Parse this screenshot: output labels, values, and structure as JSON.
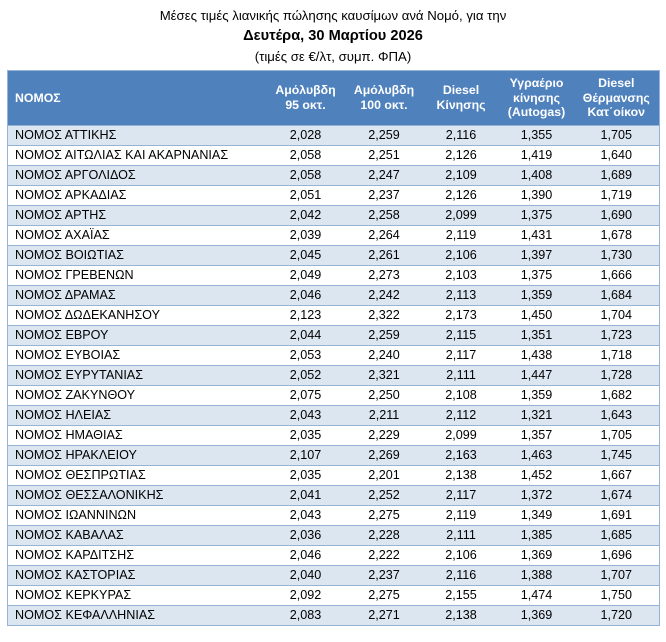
{
  "title": {
    "line1": "Μέσες τιμές λιανικής πώλησης καυσίμων ανά Νομό, για την",
    "line2": "Δευτέρα, 30 Μαρτίου 2026",
    "line3": "(τιμές σε €/λτ, συμπ. ΦΠΑ)"
  },
  "colors": {
    "header_bg": "#4F81BD",
    "header_text": "#FFFFFF",
    "row_alt_bg": "#DCE6F1",
    "border": "#95B3D7"
  },
  "table": {
    "columns": [
      "ΝΟΜΟΣ",
      "Αμόλυβδη 95 οκτ.",
      "Αμόλυβδη 100 οκτ.",
      "Diesel Κίνησης",
      "Υγραέριο κίνησης (Autogas)",
      "Diesel Θέρμανσης Κατ΄οίκον"
    ],
    "rows": [
      [
        "ΝΟΜΟΣ ΑΤΤΙΚΗΣ",
        "2,028",
        "2,259",
        "2,116",
        "1,355",
        "1,705"
      ],
      [
        "ΝΟΜΟΣ ΑΙΤΩΛΙΑΣ ΚΑΙ ΑΚΑΡΝΑΝΙΑΣ",
        "2,058",
        "2,251",
        "2,126",
        "1,419",
        "1,640"
      ],
      [
        "ΝΟΜΟΣ ΑΡΓΟΛΙΔΟΣ",
        "2,058",
        "2,247",
        "2,109",
        "1,408",
        "1,689"
      ],
      [
        "ΝΟΜΟΣ ΑΡΚΑΔΙΑΣ",
        "2,051",
        "2,237",
        "2,126",
        "1,390",
        "1,719"
      ],
      [
        "ΝΟΜΟΣ ΑΡΤΗΣ",
        "2,042",
        "2,258",
        "2,099",
        "1,375",
        "1,690"
      ],
      [
        "ΝΟΜΟΣ ΑΧΑΪΑΣ",
        "2,039",
        "2,264",
        "2,119",
        "1,431",
        "1,678"
      ],
      [
        "ΝΟΜΟΣ ΒΟΙΩΤΙΑΣ",
        "2,045",
        "2,261",
        "2,106",
        "1,397",
        "1,730"
      ],
      [
        "ΝΟΜΟΣ ΓΡΕΒΕΝΩΝ",
        "2,049",
        "2,273",
        "2,103",
        "1,375",
        "1,666"
      ],
      [
        "ΝΟΜΟΣ ΔΡΑΜΑΣ",
        "2,046",
        "2,242",
        "2,113",
        "1,359",
        "1,684"
      ],
      [
        "ΝΟΜΟΣ ΔΩΔΕΚΑΝΗΣΟΥ",
        "2,123",
        "2,322",
        "2,173",
        "1,450",
        "1,704"
      ],
      [
        "ΝΟΜΟΣ ΕΒΡΟΥ",
        "2,044",
        "2,259",
        "2,115",
        "1,351",
        "1,723"
      ],
      [
        "ΝΟΜΟΣ ΕΥΒΟΙΑΣ",
        "2,053",
        "2,240",
        "2,117",
        "1,438",
        "1,718"
      ],
      [
        "ΝΟΜΟΣ ΕΥΡΥΤΑΝΙΑΣ",
        "2,052",
        "2,321",
        "2,111",
        "1,447",
        "1,728"
      ],
      [
        "ΝΟΜΟΣ ΖΑΚΥΝΘΟΥ",
        "2,075",
        "2,250",
        "2,108",
        "1,359",
        "1,682"
      ],
      [
        "ΝΟΜΟΣ ΗΛΕΙΑΣ",
        "2,043",
        "2,211",
        "2,112",
        "1,321",
        "1,643"
      ],
      [
        "ΝΟΜΟΣ ΗΜΑΘΙΑΣ",
        "2,035",
        "2,229",
        "2,099",
        "1,357",
        "1,705"
      ],
      [
        "ΝΟΜΟΣ ΗΡΑΚΛΕΙΟΥ",
        "2,107",
        "2,269",
        "2,163",
        "1,463",
        "1,745"
      ],
      [
        "ΝΟΜΟΣ ΘΕΣΠΡΩΤΙΑΣ",
        "2,035",
        "2,201",
        "2,138",
        "1,452",
        "1,667"
      ],
      [
        "ΝΟΜΟΣ ΘΕΣΣΑΛΟΝΙΚΗΣ",
        "2,041",
        "2,252",
        "2,117",
        "1,372",
        "1,674"
      ],
      [
        "ΝΟΜΟΣ ΙΩΑΝΝΙΝΩΝ",
        "2,043",
        "2,275",
        "2,119",
        "1,349",
        "1,691"
      ],
      [
        "ΝΟΜΟΣ ΚΑΒΑΛΑΣ",
        "2,036",
        "2,228",
        "2,111",
        "1,385",
        "1,685"
      ],
      [
        "ΝΟΜΟΣ ΚΑΡΔΙΤΣΗΣ",
        "2,046",
        "2,222",
        "2,106",
        "1,369",
        "1,696"
      ],
      [
        "ΝΟΜΟΣ ΚΑΣΤΟΡΙΑΣ",
        "2,040",
        "2,237",
        "2,116",
        "1,388",
        "1,707"
      ],
      [
        "ΝΟΜΟΣ ΚΕΡΚΥΡΑΣ",
        "2,092",
        "2,275",
        "2,155",
        "1,474",
        "1,750"
      ],
      [
        "ΝΟΜΟΣ ΚΕΦΑΛΛΗΝΙΑΣ",
        "2,083",
        "2,271",
        "2,138",
        "1,369",
        "1,720"
      ]
    ]
  }
}
